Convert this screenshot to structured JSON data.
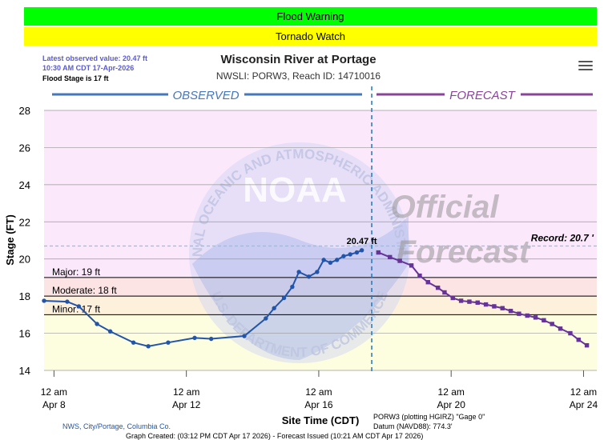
{
  "banners": [
    {
      "label": "Flood Warning",
      "color": "#00ff00"
    },
    {
      "label": "Tornado Watch",
      "color": "#ffff00"
    }
  ],
  "header": {
    "latest_line1": "Latest observed value: 20.47 ft",
    "latest_line2": "10:30 AM CDT 17-Apr-2026",
    "flood_stage": "Flood Stage is 17 ft",
    "title": "Wisconsin River at Portage",
    "subtitle": "NWSLI: PORW3, Reach ID: 14710016",
    "menu_icon": "hamburger-menu-icon"
  },
  "footer": {
    "credit": "NWS, City/Portage, Columbia Co.",
    "gage": "PORW3 (plotting HGIRZ) \"Gage 0\"",
    "datum": "Datum (NAVD88): 774.3'",
    "created": "Graph Created: (03:12 PM CDT Apr 17 2026) - Forecast Issued (10:21 AM CDT Apr 17 2026)"
  },
  "chart_data": {
    "type": "line",
    "title": "Wisconsin River at Portage",
    "xlabel": "Site Time (CDT)",
    "ylabel": "Stage (FT)",
    "ylim": [
      14,
      28
    ],
    "yticks": [
      14,
      16,
      18,
      20,
      22,
      24,
      26,
      28
    ],
    "xlim_days": [
      -0.3,
      16.4
    ],
    "xticks": [
      {
        "day": 0,
        "line1": "12 am",
        "line2": "Apr 8"
      },
      {
        "day": 4,
        "line1": "12 am",
        "line2": "Apr 12"
      },
      {
        "day": 8,
        "line1": "12 am",
        "line2": "Apr 16"
      },
      {
        "day": 12,
        "line1": "12 am",
        "line2": "Apr 20"
      },
      {
        "day": 16,
        "line1": "12 am",
        "line2": "Apr 24"
      }
    ],
    "section_labels": {
      "observed": "OBSERVED",
      "forecast": "FORECAST"
    },
    "now_day": 9.6,
    "thresholds": [
      {
        "name": "Major",
        "label": "Major: 19 ft",
        "value": 19
      },
      {
        "name": "Moderate",
        "label": "Moderate: 18 ft",
        "value": 18
      },
      {
        "name": "Minor",
        "label": "Minor: 17 ft",
        "value": 17
      }
    ],
    "record": {
      "label": "Record: 20.7 '",
      "value": 20.7
    },
    "bands": [
      {
        "from": 14,
        "to": 17,
        "color": "#fdfde0"
      },
      {
        "from": 17,
        "to": 18,
        "color": "#fdf1dc"
      },
      {
        "from": 18,
        "to": 19,
        "color": "#fce4e4"
      },
      {
        "from": 19,
        "to": 28,
        "color": "#fbe8fb"
      }
    ],
    "peak_label": "20.47 ft",
    "watermark": {
      "logo": "NOAA",
      "agency": "NATIONAL OCEANIC AND ATMOSPHERIC ADMINISTRATION",
      "dept": "U.S. DEPARTMENT OF COMMERCE",
      "stamp1": "Official",
      "stamp2": "Forecast"
    },
    "series": [
      {
        "name": "OBSERVED",
        "color": "#2255aa",
        "x": [
          -0.3,
          0.4,
          0.75,
          1.3,
          1.7,
          2.4,
          2.85,
          3.45,
          4.25,
          4.75,
          5.75,
          6.4,
          6.65,
          6.95,
          7.2,
          7.4,
          7.7,
          7.95,
          8.15,
          8.35,
          8.55,
          8.75,
          8.95,
          9.15,
          9.3
        ],
        "y": [
          17.75,
          17.7,
          17.45,
          16.5,
          16.1,
          15.5,
          15.3,
          15.5,
          15.75,
          15.7,
          15.85,
          16.8,
          17.35,
          17.9,
          18.5,
          19.3,
          19.05,
          19.3,
          19.95,
          19.8,
          19.95,
          20.15,
          20.25,
          20.35,
          20.47
        ]
      },
      {
        "name": "FORECAST",
        "color": "#663399",
        "x": [
          9.8,
          10.15,
          10.45,
          10.8,
          11.05,
          11.3,
          11.6,
          11.8,
          12.05,
          12.3,
          12.55,
          12.8,
          13.05,
          13.3,
          13.55,
          13.8,
          14.05,
          14.3,
          14.55,
          14.8,
          15.05,
          15.3,
          15.6,
          15.85,
          16.1
        ],
        "y": [
          20.35,
          20.1,
          19.9,
          19.65,
          19.1,
          18.75,
          18.45,
          18.2,
          17.9,
          17.75,
          17.7,
          17.65,
          17.55,
          17.45,
          17.35,
          17.2,
          17.05,
          16.95,
          16.85,
          16.7,
          16.5,
          16.25,
          16.0,
          15.65,
          15.35
        ]
      }
    ]
  }
}
